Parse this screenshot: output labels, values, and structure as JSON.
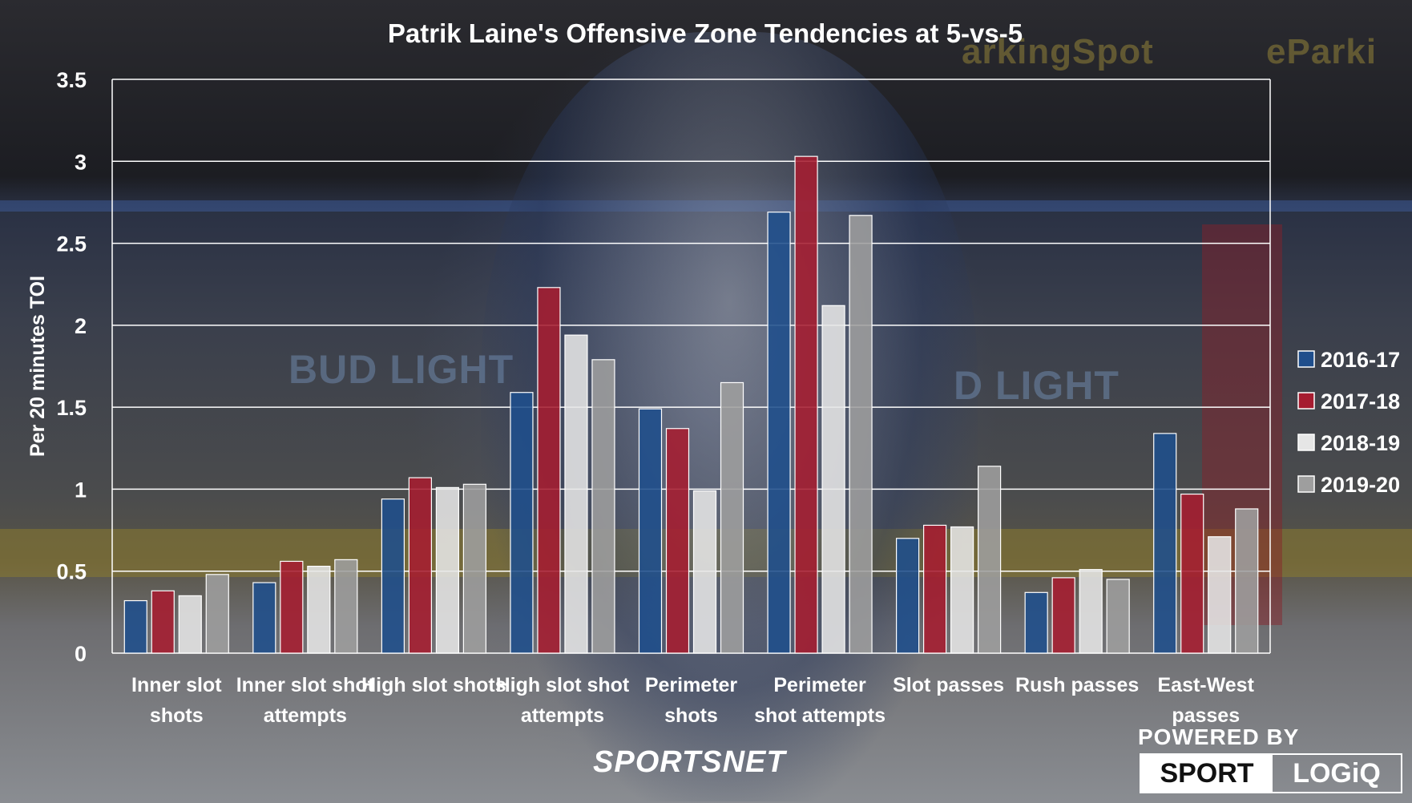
{
  "logos": {
    "sportsnet": "SPORTSNET",
    "powered_by": "POWERED BY",
    "sport": "SPORT",
    "logiq": "LOGiQ"
  },
  "background": {
    "ad_1": "BUD LIGHT",
    "ad_2": "D LIGHT",
    "ad_3": "arkingSpot",
    "ad_4": "eParki"
  },
  "colors": {
    "2016-17": "#1f4e8c",
    "2017-18": "#a61c30",
    "2018-19": "#e6e6e6",
    "2019-20": "#9e9e9e"
  },
  "chart_data": {
    "type": "bar",
    "title": "Patrik Laine's Offensive Zone Tendencies at 5-vs-5",
    "xlabel": "",
    "ylabel": "Per 20 minutes TOI",
    "ylim": [
      0,
      3.5
    ],
    "yticks": [
      0,
      0.5,
      1,
      1.5,
      2,
      2.5,
      3,
      3.5
    ],
    "yticklabels": [
      "0",
      "0.5",
      "1",
      "1.5",
      "2",
      "2.5",
      "3",
      "3.5"
    ],
    "grid": true,
    "legend_position": "right",
    "categories": [
      [
        "Inner slot",
        "shots"
      ],
      [
        "Inner slot shot",
        "attempts"
      ],
      [
        "High slot shots"
      ],
      [
        "High slot shot",
        "attempts"
      ],
      [
        "Perimeter",
        "shots"
      ],
      [
        "Perimeter",
        "shot attempts"
      ],
      [
        "Slot passes"
      ],
      [
        "Rush passes"
      ],
      [
        "East-West",
        "passes"
      ]
    ],
    "series": [
      {
        "name": "2016-17",
        "values": [
          0.32,
          0.43,
          0.94,
          1.59,
          1.49,
          2.69,
          0.7,
          0.37,
          1.34
        ]
      },
      {
        "name": "2017-18",
        "values": [
          0.38,
          0.56,
          1.07,
          2.23,
          1.37,
          3.03,
          0.78,
          0.46,
          0.97
        ]
      },
      {
        "name": "2018-19",
        "values": [
          0.35,
          0.53,
          1.01,
          1.94,
          0.99,
          2.12,
          0.77,
          0.51,
          0.71
        ]
      },
      {
        "name": "2019-20",
        "values": [
          0.48,
          0.57,
          1.03,
          1.79,
          1.65,
          2.67,
          1.14,
          0.45,
          0.88
        ]
      }
    ]
  }
}
